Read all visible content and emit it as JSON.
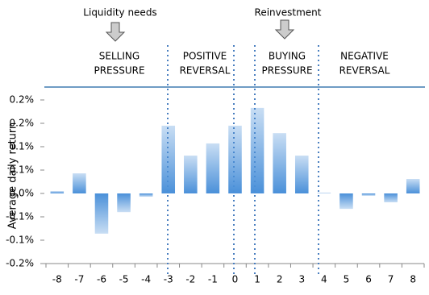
{
  "chart_data": {
    "type": "bar",
    "ylabel": "Average daily return",
    "annotations": [
      "Liquidity needs",
      "Reinvestment"
    ],
    "sections": [
      [
        "SELLING",
        "PRESSURE"
      ],
      [
        "POSITIVE",
        "REVERSAL"
      ],
      [
        "BUYING",
        "PRESSURE"
      ],
      [
        "NEGATIVE",
        "REVERSAL"
      ]
    ],
    "categories": [
      "-8",
      "-7",
      "-6",
      "-5",
      "-4",
      "-3",
      "-2",
      "-1",
      "0",
      "1",
      "2",
      "3",
      "4",
      "5",
      "6",
      "7",
      "8"
    ],
    "values": [
      0.005,
      0.043,
      -0.086,
      -0.04,
      -0.007,
      0.145,
      0.081,
      0.107,
      0.145,
      0.183,
      0.129,
      0.081,
      0.001,
      -0.033,
      -0.005,
      -0.019,
      0.031
    ],
    "color": "#4a90d9",
    "ylim": [
      -0.15,
      0.2
    ],
    "yticks": [
      {
        "value": 0.2,
        "label": "0.2%"
      },
      {
        "value": 0.15,
        "label": "0.2%"
      },
      {
        "value": 0.1,
        "label": "0.1%"
      },
      {
        "value": 0.05,
        "label": "0.1%"
      },
      {
        "value": 0,
        "label": "0.0%"
      },
      {
        "value": -0.05,
        "label": "-0.1%"
      },
      {
        "value": -0.1,
        "label": "-0.1%"
      },
      {
        "value": -0.15,
        "label": "-0.2%"
      }
    ]
  }
}
